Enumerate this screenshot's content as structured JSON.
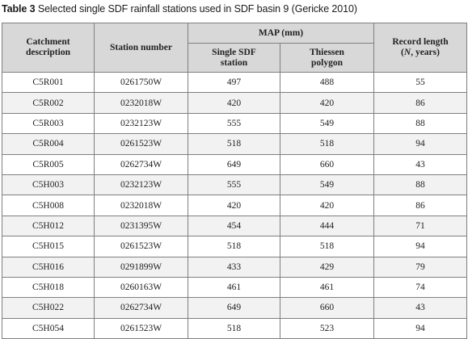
{
  "caption": {
    "label": "Table 3",
    "text": " Selected single SDF rainfall stations used in SDF basin 9 (Gericke 2010)"
  },
  "headers": {
    "catchment_line1": "Catchment",
    "catchment_line2": "description",
    "station": "Station number",
    "map": "MAP (mm)",
    "single_line1": "Single SDF",
    "single_line2": "station",
    "thiessen_line1": "Thiessen",
    "thiessen_line2": "polygon",
    "record_line1": "Record length",
    "record_line2_pre": "(",
    "record_line2_n": "N",
    "record_line2_post": ", years)"
  },
  "rows": [
    {
      "catchment": "C5R001",
      "station": "0261750W",
      "single": "497",
      "thiessen": "488",
      "record": "55"
    },
    {
      "catchment": "C5R002",
      "station": "0232018W",
      "single": "420",
      "thiessen": "420",
      "record": "86"
    },
    {
      "catchment": "C5R003",
      "station": "0232123W",
      "single": "555",
      "thiessen": "549",
      "record": "88"
    },
    {
      "catchment": "C5R004",
      "station": "0261523W",
      "single": "518",
      "thiessen": "518",
      "record": "94"
    },
    {
      "catchment": "C5R005",
      "station": "0262734W",
      "single": "649",
      "thiessen": "660",
      "record": "43"
    },
    {
      "catchment": "C5H003",
      "station": "0232123W",
      "single": "555",
      "thiessen": "549",
      "record": "88"
    },
    {
      "catchment": "C5H008",
      "station": "0232018W",
      "single": "420",
      "thiessen": "420",
      "record": "86"
    },
    {
      "catchment": "C5H012",
      "station": "0231395W",
      "single": "454",
      "thiessen": "444",
      "record": "71"
    },
    {
      "catchment": "C5H015",
      "station": "0261523W",
      "single": "518",
      "thiessen": "518",
      "record": "94"
    },
    {
      "catchment": "C5H016",
      "station": "0291899W",
      "single": "433",
      "thiessen": "429",
      "record": "79"
    },
    {
      "catchment": "C5H018",
      "station": "0260163W",
      "single": "461",
      "thiessen": "461",
      "record": "74"
    },
    {
      "catchment": "C5H022",
      "station": "0262734W",
      "single": "649",
      "thiessen": "660",
      "record": "43"
    },
    {
      "catchment": "C5H054",
      "station": "0261523W",
      "single": "518",
      "thiessen": "523",
      "record": "94"
    }
  ]
}
